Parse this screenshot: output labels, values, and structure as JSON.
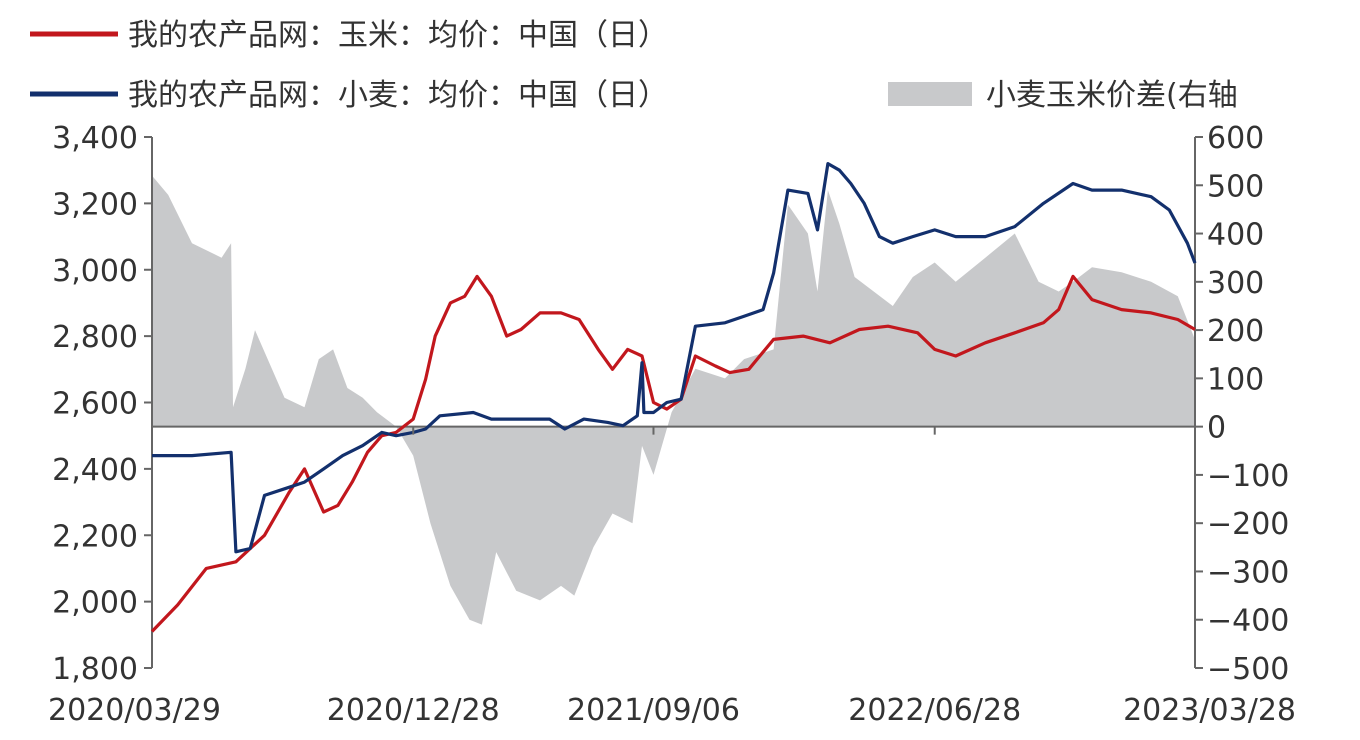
{
  "colors": {
    "corn": "#c2171d",
    "wheat": "#13306d",
    "spread": "#c8c9cb",
    "axis": "#666666",
    "text": "#333333"
  },
  "chart_data": {
    "type": "line",
    "legend": [
      {
        "key": "corn",
        "label": "我的农产品网：玉米：均价：中国（日）",
        "style": "line"
      },
      {
        "key": "wheat",
        "label": "我的农产品网：小麦：均价：中国（日）",
        "style": "line"
      },
      {
        "key": "spread",
        "label": "小麦玉米价差(右轴",
        "style": "area"
      }
    ],
    "x_tick_labels": [
      "2020/03/29",
      "2020/12/28",
      "2021/09/06",
      "2022/06/28",
      "2023/03/28"
    ],
    "x_tick_dates": [
      "2020-03-29",
      "2020-12-28",
      "2021-09-06",
      "2022-06-28",
      "2023-03-28"
    ],
    "y_left": {
      "ticks": [
        "1,800",
        "2,000",
        "2,200",
        "2,400",
        "2,600",
        "2,800",
        "3,000",
        "3,200",
        "3,400"
      ],
      "ylim": [
        1800,
        3400
      ]
    },
    "y_right": {
      "ticks": [
        "-500",
        "-400",
        "-300",
        "-200",
        "-100",
        "0",
        "100",
        "200",
        "300",
        "400",
        "500",
        "600"
      ],
      "ylim": [
        -500,
        600
      ]
    },
    "series": [
      {
        "key": "corn",
        "axis": "left",
        "points": [
          [
            "2020-03-29",
            1910
          ],
          [
            "2020-04-25",
            1990
          ],
          [
            "2020-05-25",
            2100
          ],
          [
            "2020-06-25",
            2120
          ],
          [
            "2020-07-25",
            2200
          ],
          [
            "2020-08-20",
            2330
          ],
          [
            "2020-09-05",
            2400
          ],
          [
            "2020-09-25",
            2270
          ],
          [
            "2020-10-10",
            2290
          ],
          [
            "2020-10-25",
            2360
          ],
          [
            "2020-11-10",
            2450
          ],
          [
            "2020-11-25",
            2500
          ],
          [
            "2020-12-10",
            2510
          ],
          [
            "2020-12-28",
            2550
          ],
          [
            "2021-01-10",
            2670
          ],
          [
            "2021-01-20",
            2800
          ],
          [
            "2021-02-05",
            2900
          ],
          [
            "2021-02-20",
            2920
          ],
          [
            "2021-03-05",
            2980
          ],
          [
            "2021-03-20",
            2920
          ],
          [
            "2021-04-05",
            2800
          ],
          [
            "2021-04-20",
            2820
          ],
          [
            "2021-05-10",
            2870
          ],
          [
            "2021-06-01",
            2870
          ],
          [
            "2021-06-20",
            2850
          ],
          [
            "2021-07-10",
            2760
          ],
          [
            "2021-07-25",
            2700
          ],
          [
            "2021-08-10",
            2760
          ],
          [
            "2021-08-25",
            2740
          ],
          [
            "2021-09-06",
            2600
          ],
          [
            "2021-09-20",
            2580
          ],
          [
            "2021-10-05",
            2610
          ],
          [
            "2021-10-20",
            2740
          ],
          [
            "2021-11-10",
            2710
          ],
          [
            "2021-11-25",
            2690
          ],
          [
            "2021-12-15",
            2700
          ],
          [
            "2022-01-10",
            2790
          ],
          [
            "2022-02-10",
            2800
          ],
          [
            "2022-03-10",
            2780
          ],
          [
            "2022-04-10",
            2820
          ],
          [
            "2022-05-10",
            2830
          ],
          [
            "2022-06-10",
            2810
          ],
          [
            "2022-06-28",
            2760
          ],
          [
            "2022-07-20",
            2740
          ],
          [
            "2022-08-20",
            2780
          ],
          [
            "2022-09-20",
            2810
          ],
          [
            "2022-10-20",
            2840
          ],
          [
            "2022-11-05",
            2880
          ],
          [
            "2022-11-20",
            2980
          ],
          [
            "2022-12-10",
            2910
          ],
          [
            "2023-01-10",
            2880
          ],
          [
            "2023-02-10",
            2870
          ],
          [
            "2023-03-10",
            2850
          ],
          [
            "2023-03-28",
            2820
          ]
        ]
      },
      {
        "key": "wheat",
        "axis": "left",
        "points": [
          [
            "2020-03-29",
            2440
          ],
          [
            "2020-05-10",
            2440
          ],
          [
            "2020-06-20",
            2450
          ],
          [
            "2020-06-25",
            2150
          ],
          [
            "2020-07-10",
            2160
          ],
          [
            "2020-07-25",
            2320
          ],
          [
            "2020-08-15",
            2340
          ],
          [
            "2020-09-05",
            2360
          ],
          [
            "2020-09-25",
            2400
          ],
          [
            "2020-10-15",
            2440
          ],
          [
            "2020-11-05",
            2470
          ],
          [
            "2020-11-25",
            2510
          ],
          [
            "2020-12-10",
            2500
          ],
          [
            "2020-12-28",
            2510
          ],
          [
            "2021-01-10",
            2520
          ],
          [
            "2021-01-25",
            2560
          ],
          [
            "2021-03-01",
            2570
          ],
          [
            "2021-03-20",
            2550
          ],
          [
            "2021-04-20",
            2550
          ],
          [
            "2021-05-20",
            2550
          ],
          [
            "2021-06-05",
            2520
          ],
          [
            "2021-06-25",
            2550
          ],
          [
            "2021-07-20",
            2540
          ],
          [
            "2021-08-05",
            2530
          ],
          [
            "2021-08-20",
            2560
          ],
          [
            "2021-08-25",
            2720
          ],
          [
            "2021-08-27",
            2570
          ],
          [
            "2021-09-06",
            2570
          ],
          [
            "2021-09-20",
            2600
          ],
          [
            "2021-10-05",
            2610
          ],
          [
            "2021-10-20",
            2830
          ],
          [
            "2021-11-20",
            2840
          ],
          [
            "2021-12-10",
            2860
          ],
          [
            "2021-12-30",
            2880
          ],
          [
            "2022-01-10",
            2990
          ],
          [
            "2022-01-25",
            3240
          ],
          [
            "2022-02-15",
            3230
          ],
          [
            "2022-02-25",
            3120
          ],
          [
            "2022-03-08",
            3320
          ],
          [
            "2022-03-20",
            3300
          ],
          [
            "2022-04-01",
            3260
          ],
          [
            "2022-04-15",
            3200
          ],
          [
            "2022-05-01",
            3100
          ],
          [
            "2022-05-15",
            3080
          ],
          [
            "2022-06-05",
            3100
          ],
          [
            "2022-06-28",
            3120
          ],
          [
            "2022-07-20",
            3100
          ],
          [
            "2022-08-20",
            3100
          ],
          [
            "2022-09-20",
            3130
          ],
          [
            "2022-10-20",
            3200
          ],
          [
            "2022-11-20",
            3260
          ],
          [
            "2022-12-10",
            3240
          ],
          [
            "2023-01-10",
            3240
          ],
          [
            "2023-02-10",
            3220
          ],
          [
            "2023-03-01",
            3180
          ],
          [
            "2023-03-20",
            3080
          ],
          [
            "2023-03-28",
            3020
          ]
        ]
      },
      {
        "key": "spread",
        "axis": "right",
        "points": [
          [
            "2020-03-29",
            520
          ],
          [
            "2020-04-15",
            480
          ],
          [
            "2020-05-10",
            380
          ],
          [
            "2020-06-10",
            350
          ],
          [
            "2020-06-20",
            380
          ],
          [
            "2020-06-22",
            40
          ],
          [
            "2020-07-05",
            120
          ],
          [
            "2020-07-15",
            200
          ],
          [
            "2020-08-15",
            60
          ],
          [
            "2020-09-05",
            40
          ],
          [
            "2020-09-20",
            140
          ],
          [
            "2020-10-05",
            160
          ],
          [
            "2020-10-20",
            80
          ],
          [
            "2020-11-05",
            60
          ],
          [
            "2020-11-20",
            30
          ],
          [
            "2020-12-10",
            0
          ],
          [
            "2020-12-28",
            -60
          ],
          [
            "2021-01-15",
            -200
          ],
          [
            "2021-02-05",
            -330
          ],
          [
            "2021-02-25",
            -400
          ],
          [
            "2021-03-10",
            -410
          ],
          [
            "2021-03-25",
            -260
          ],
          [
            "2021-04-15",
            -340
          ],
          [
            "2021-05-10",
            -360
          ],
          [
            "2021-06-01",
            -330
          ],
          [
            "2021-06-15",
            -350
          ],
          [
            "2021-07-05",
            -250
          ],
          [
            "2021-07-25",
            -180
          ],
          [
            "2021-08-15",
            -200
          ],
          [
            "2021-08-25",
            -40
          ],
          [
            "2021-09-06",
            -100
          ],
          [
            "2021-09-25",
            30
          ],
          [
            "2021-10-20",
            120
          ],
          [
            "2021-11-20",
            100
          ],
          [
            "2021-12-10",
            140
          ],
          [
            "2022-01-10",
            160
          ],
          [
            "2022-01-25",
            460
          ],
          [
            "2022-02-15",
            400
          ],
          [
            "2022-02-25",
            280
          ],
          [
            "2022-03-08",
            490
          ],
          [
            "2022-03-20",
            420
          ],
          [
            "2022-04-05",
            310
          ],
          [
            "2022-04-25",
            280
          ],
          [
            "2022-05-15",
            250
          ],
          [
            "2022-06-05",
            310
          ],
          [
            "2022-06-28",
            340
          ],
          [
            "2022-07-20",
            300
          ],
          [
            "2022-08-20",
            350
          ],
          [
            "2022-09-20",
            400
          ],
          [
            "2022-10-15",
            300
          ],
          [
            "2022-11-05",
            280
          ],
          [
            "2022-11-20",
            300
          ],
          [
            "2022-12-10",
            330
          ],
          [
            "2023-01-10",
            320
          ],
          [
            "2023-02-10",
            300
          ],
          [
            "2023-03-10",
            270
          ],
          [
            "2023-03-28",
            180
          ]
        ]
      }
    ]
  }
}
